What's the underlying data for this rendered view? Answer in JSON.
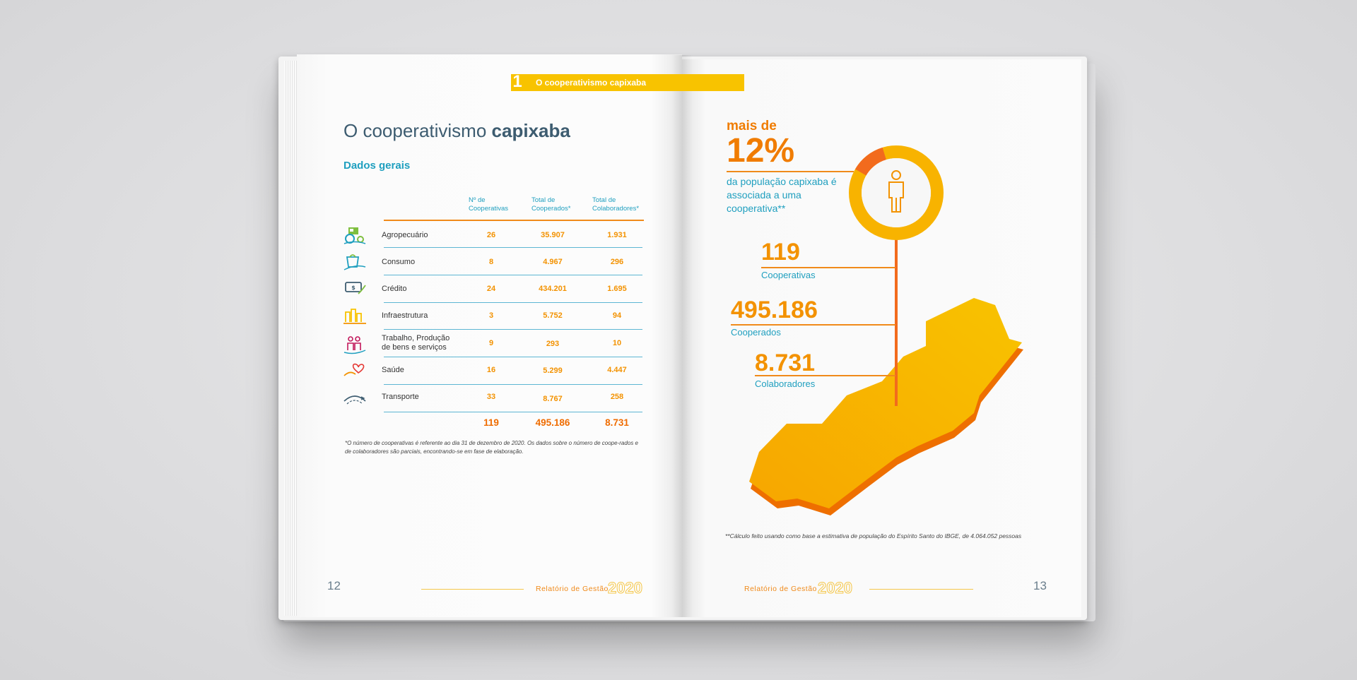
{
  "header": {
    "chapter_number": "1",
    "chapter_label": "O cooperativismo capixaba"
  },
  "left_page": {
    "title_regular": "O cooperativismo",
    "title_bold": "capixaba",
    "subtitle": "Dados gerais",
    "table": {
      "headers": [
        {
          "line1": "Nº de",
          "line2": "Cooperativas"
        },
        {
          "line1": "Total de",
          "line2": "Cooperados*"
        },
        {
          "line1": "Total de",
          "line2": "Colaboradores*"
        }
      ],
      "rows": [
        {
          "icon": "tractor-icon",
          "label": "Agropecuário",
          "label2": "",
          "cooperativas": "26",
          "cooperados": "35.907",
          "colaboradores": "1.931"
        },
        {
          "icon": "shopping-bag-icon",
          "label": "Consumo",
          "label2": "",
          "cooperativas": "8",
          "cooperados": "4.967",
          "colaboradores": "296"
        },
        {
          "icon": "money-bill-icon",
          "label": "Crédito",
          "label2": "",
          "cooperativas": "24",
          "cooperados": "434.201",
          "colaboradores": "1.695"
        },
        {
          "icon": "buildings-icon",
          "label": "Infraestrutura",
          "label2": "",
          "cooperativas": "3",
          "cooperados": "5.752",
          "colaboradores": "94"
        },
        {
          "icon": "workers-icon",
          "label": "Trabalho, Produção",
          "label2": "de bens e serviços",
          "cooperativas": "9",
          "cooperados": "293",
          "colaboradores": "10"
        },
        {
          "icon": "heart-hand-icon",
          "label": "Saúde",
          "label2": "",
          "cooperativas": "16",
          "cooperados": "5.299",
          "colaboradores": "4.447"
        },
        {
          "icon": "road-icon",
          "label": "Transporte",
          "label2": "",
          "cooperativas": "33",
          "cooperados": "8.767",
          "colaboradores": "258"
        }
      ],
      "totals": {
        "cooperativas": "119",
        "cooperados": "495.186",
        "colaboradores": "8.731"
      }
    },
    "footnote": "*O número de cooperativas é referente ao dia 31 de dezembro de 2020. Os dados sobre o número de coope-rados e de colaboradores são parciais, encontrando-se em fase de elaboração.",
    "page_number": "12",
    "footer_label": "Relatório de Gestão",
    "footer_year": "2020"
  },
  "right_page": {
    "mais_de": "mais de",
    "percent": "12%",
    "percent_desc": "da população capixaba é associada a uma cooperativa**",
    "stats": [
      {
        "value": "119",
        "label": "Cooperativas"
      },
      {
        "value": "495.186",
        "label": "Cooperados"
      },
      {
        "value": "8.731",
        "label": "Colaboradores"
      }
    ],
    "footnote": "**Cálculo feito usando como base a estimativa de população do Espírito Santo do IBGE, de 4.064.052 pessoas",
    "page_number": "13",
    "footer_label": "Relatório de Gestão",
    "footer_year": "2020",
    "colors": {
      "orange": "#f39200",
      "yellow": "#f8c300",
      "blue": "#1f9fbf"
    }
  }
}
